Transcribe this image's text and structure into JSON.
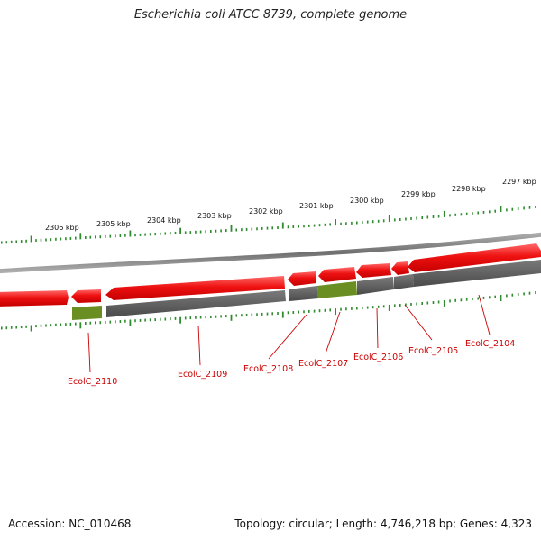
{
  "title": "Escherichia coli ATCC 8739, complete genome",
  "footer": {
    "accession": "Accession: NC_010468",
    "summary": "Topology: circular; Length: 4,746,218 bp; Genes: 4,323"
  },
  "colors": {
    "forward_gene": "#ee1111",
    "reverse_gene": "#5a5a5a",
    "highlight_gene": "#6b8e23",
    "backbone": "#8a8a8a",
    "tick": "#2e8b2e",
    "label": "#cc0000"
  },
  "scale_labels": [
    {
      "kbp": 2306,
      "text": "2306 kbp"
    },
    {
      "kbp": 2305,
      "text": "2305 kbp"
    },
    {
      "kbp": 2304,
      "text": "2304 kbp"
    },
    {
      "kbp": 2303,
      "text": "2303 kbp"
    },
    {
      "kbp": 2302,
      "text": "2302 kbp"
    },
    {
      "kbp": 2301,
      "text": "2301 kbp"
    },
    {
      "kbp": 2300,
      "text": "2300 kbp"
    },
    {
      "kbp": 2299,
      "text": "2299 kbp"
    },
    {
      "kbp": 2298,
      "text": "2298 kbp"
    },
    {
      "kbp": 2297,
      "text": "2297 kbp"
    }
  ],
  "genes": [
    {
      "name": "EcolC_2110",
      "strand": "reverse",
      "highlight": true
    },
    {
      "name": "EcolC_2109",
      "strand": "reverse",
      "highlight": false
    },
    {
      "name": "EcolC_2108",
      "strand": "reverse",
      "highlight": false
    },
    {
      "name": "EcolC_2107",
      "strand": "reverse",
      "highlight": true
    },
    {
      "name": "EcolC_2106",
      "strand": "reverse",
      "highlight": false
    },
    {
      "name": "EcolC_2105",
      "strand": "reverse",
      "highlight": false
    },
    {
      "name": "EcolC_2104",
      "strand": "reverse",
      "highlight": false
    }
  ]
}
